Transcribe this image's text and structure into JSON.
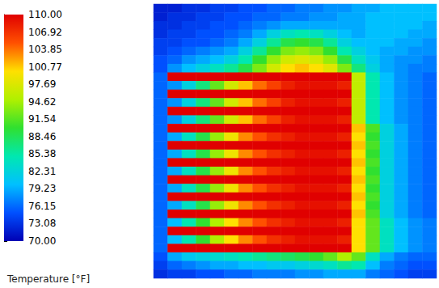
{
  "chart_data": {
    "type": "heatmap",
    "tick_labels": false,
    "colorbar": {
      "range": [
        70,
        110
      ],
      "ticks": [
        {
          "value": 110,
          "label": "110.00"
        },
        106.92,
        103.85,
        100.77,
        97.69,
        94.62,
        91.54,
        88.46,
        85.38,
        82.31,
        79.23,
        76.15,
        73.08,
        {
          "value": 70,
          "label": "70.00"
        }
      ],
      "label": "Temperature [°F]"
    },
    "cells": [
      [
        72,
        72,
        73,
        73,
        74,
        74,
        75,
        75,
        76,
        76,
        77,
        77,
        78,
        78,
        79,
        79,
        80,
        80,
        80,
        80
      ],
      [
        72,
        73,
        73,
        74,
        74,
        75,
        75,
        76,
        76,
        77,
        77,
        78,
        78,
        79,
        79,
        80,
        80,
        80,
        80,
        80
      ],
      [
        73,
        73,
        74,
        74,
        75,
        75,
        76,
        77,
        78,
        79,
        79,
        79,
        79,
        79,
        79,
        80,
        80,
        80,
        80,
        79
      ],
      [
        73,
        74,
        74,
        75,
        75,
        76,
        77,
        79,
        82,
        84,
        85,
        84,
        82,
        80,
        79,
        80,
        80,
        80,
        79,
        79
      ],
      [
        74,
        74,
        75,
        75,
        76,
        77,
        79,
        82,
        86,
        89,
        90,
        89,
        86,
        82,
        80,
        80,
        80,
        79,
        79,
        78
      ],
      [
        74,
        75,
        76,
        77,
        78,
        79,
        82,
        86,
        90,
        93,
        94,
        93,
        90,
        85,
        82,
        80,
        79,
        79,
        78,
        78
      ],
      [
        75,
        76,
        78,
        79,
        80,
        82,
        85,
        90,
        94,
        97,
        98,
        97,
        94,
        89,
        84,
        81,
        79,
        78,
        78,
        77
      ],
      [
        75,
        78,
        80,
        82,
        84,
        86,
        89,
        93,
        97,
        100,
        101,
        100,
        98,
        93,
        87,
        82,
        79,
        78,
        77,
        77
      ],
      [
        76,
        110,
        110,
        110,
        110,
        110,
        110,
        110,
        110,
        110,
        110,
        110,
        110,
        110,
        96,
        85,
        80,
        78,
        77,
        76
      ],
      [
        76,
        78,
        82,
        87,
        92,
        97,
        101,
        104,
        106,
        108,
        109,
        109,
        109,
        108,
        96,
        85,
        80,
        78,
        77,
        76
      ],
      [
        76,
        110,
        110,
        110,
        110,
        110,
        110,
        110,
        110,
        110,
        110,
        110,
        110,
        110,
        96,
        85,
        80,
        78,
        77,
        76
      ],
      [
        76,
        78,
        82,
        87,
        92,
        97,
        101,
        104,
        106,
        108,
        109,
        109,
        109,
        108,
        96,
        85,
        80,
        78,
        77,
        76
      ],
      [
        76,
        110,
        110,
        110,
        110,
        110,
        110,
        110,
        110,
        110,
        110,
        110,
        110,
        110,
        96,
        85,
        80,
        78,
        77,
        76
      ],
      [
        76,
        78,
        82,
        87,
        92,
        97,
        101,
        104,
        106,
        108,
        109,
        109,
        109,
        108,
        96,
        85,
        80,
        78,
        77,
        76
      ],
      [
        76,
        110,
        110,
        110,
        110,
        110,
        110,
        110,
        110,
        110,
        110,
        110,
        110,
        110,
        101,
        91,
        82,
        79,
        77,
        76
      ],
      [
        76,
        79,
        84,
        89,
        94,
        99,
        103,
        105,
        107,
        108,
        109,
        109,
        109,
        108,
        100,
        90,
        82,
        79,
        77,
        76
      ],
      [
        76,
        110,
        110,
        110,
        110,
        110,
        110,
        110,
        110,
        110,
        110,
        110,
        110,
        110,
        101,
        91,
        82,
        79,
        77,
        76
      ],
      [
        76,
        79,
        84,
        89,
        94,
        99,
        103,
        105,
        107,
        108,
        109,
        109,
        109,
        108,
        100,
        90,
        82,
        79,
        77,
        76
      ],
      [
        76,
        110,
        110,
        110,
        110,
        110,
        110,
        110,
        110,
        110,
        110,
        110,
        110,
        110,
        101,
        91,
        82,
        79,
        77,
        76
      ],
      [
        76,
        79,
        84,
        89,
        94,
        99,
        103,
        105,
        107,
        108,
        109,
        109,
        109,
        108,
        100,
        90,
        82,
        79,
        77,
        76
      ],
      [
        76,
        110,
        110,
        110,
        110,
        110,
        110,
        110,
        110,
        110,
        110,
        110,
        110,
        110,
        101,
        91,
        82,
        79,
        77,
        76
      ],
      [
        76,
        79,
        84,
        89,
        94,
        99,
        103,
        105,
        107,
        108,
        109,
        109,
        109,
        108,
        100,
        90,
        82,
        79,
        77,
        76
      ],
      [
        76,
        110,
        110,
        110,
        110,
        110,
        110,
        110,
        110,
        110,
        110,
        110,
        110,
        110,
        101,
        91,
        82,
        79,
        77,
        76
      ],
      [
        76,
        79,
        84,
        89,
        94,
        99,
        103,
        105,
        107,
        108,
        109,
        109,
        109,
        108,
        100,
        90,
        82,
        79,
        77,
        76
      ],
      [
        76,
        110,
        110,
        110,
        110,
        110,
        110,
        110,
        110,
        110,
        110,
        110,
        110,
        110,
        101,
        91,
        82,
        79,
        77,
        76
      ],
      [
        76,
        80,
        85,
        90,
        95,
        100,
        103,
        105,
        107,
        108,
        109,
        109,
        109,
        108,
        100,
        92,
        84,
        80,
        78,
        77
      ],
      [
        76,
        110,
        110,
        110,
        110,
        110,
        110,
        110,
        110,
        110,
        110,
        110,
        110,
        110,
        100,
        92,
        84,
        80,
        78,
        77
      ],
      [
        76,
        80,
        85,
        90,
        95,
        100,
        103,
        105,
        107,
        108,
        109,
        109,
        109,
        108,
        100,
        92,
        84,
        80,
        78,
        77
      ],
      [
        76,
        110,
        110,
        110,
        110,
        110,
        110,
        110,
        110,
        110,
        110,
        110,
        110,
        110,
        100,
        92,
        84,
        80,
        78,
        77
      ],
      [
        75,
        79,
        81,
        82,
        83,
        84,
        85,
        86,
        87,
        88,
        89,
        90,
        92,
        95,
        92,
        84,
        79,
        77,
        76,
        76
      ],
      [
        74,
        76,
        77,
        78,
        79,
        79,
        80,
        80,
        81,
        81,
        82,
        83,
        84,
        86,
        85,
        80,
        77,
        76,
        75,
        75
      ],
      [
        73,
        74,
        74,
        75,
        75,
        76,
        76,
        77,
        77,
        77,
        78,
        78,
        79,
        79,
        79,
        77,
        76,
        75,
        74,
        74
      ]
    ]
  }
}
